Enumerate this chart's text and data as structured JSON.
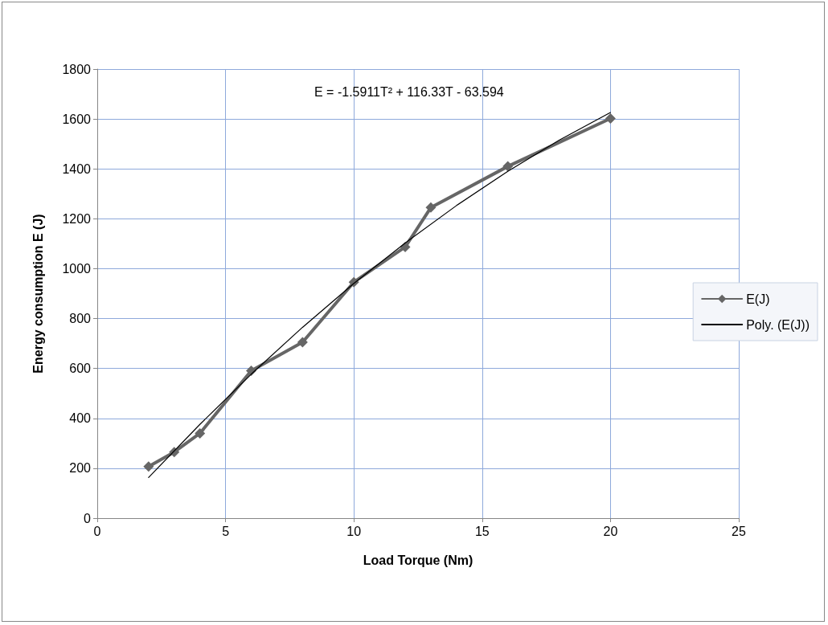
{
  "chart_data": {
    "type": "line",
    "xlabel": "Load Torque (Nm)",
    "ylabel": "Energy consumption E (J)",
    "xlim": [
      0,
      25
    ],
    "xticks": [
      0,
      5,
      10,
      15,
      20,
      25
    ],
    "ylim": [
      0,
      1800
    ],
    "yticks": [
      0,
      200,
      400,
      600,
      800,
      1000,
      1200,
      1400,
      1600,
      1800
    ],
    "grid": true,
    "legend": "right",
    "marker": "diamond",
    "annotations": [
      "E = -1.5911T² + 116.33T - 63.594"
    ],
    "series": [
      {
        "name": "E(J)",
        "color": "#666666",
        "x": [
          2,
          3,
          4,
          6,
          8,
          10,
          12,
          13,
          16,
          20
        ],
        "values": [
          207,
          265,
          340,
          591,
          705,
          946,
          1087,
          1245,
          1410,
          1602
        ]
      },
      {
        "name": "Poly. (E(J))",
        "color": "#000000",
        "marker": "none",
        "x": [
          2,
          4,
          6,
          8,
          10,
          12,
          14,
          16,
          18,
          20
        ],
        "values": [
          163,
          376,
          577,
          765,
          941,
          1103,
          1253,
          1390,
          1515,
          1626
        ]
      }
    ]
  }
}
